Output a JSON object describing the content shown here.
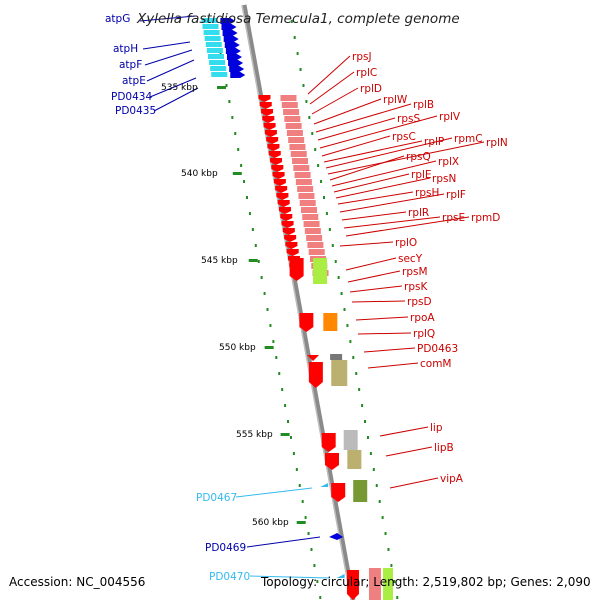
{
  "header": {
    "title": "Xylella fastidiosa Temecula1, complete genome"
  },
  "footer": {
    "accession": "Accession: NC_004556",
    "summary": "Topology: circular; Length: 2,519,802 bp; Genes: 2,090"
  },
  "colors": {
    "backbone": "#8a8a8a",
    "ribosomal_gene": "#ff0000",
    "ribosomal_block": "#f08080",
    "atp_gene": "#0000dd",
    "atp_block": "#33ddee",
    "label_red": "#cc0000",
    "label_blue": "#0000aa",
    "label_cyan": "#33bbee",
    "tick": "#228b22",
    "lime": "#aaee44",
    "orange": "#ff8800",
    "olive": "#bbb070",
    "green": "#779933",
    "gray": "#bbbbbb"
  },
  "scale_labels": [
    {
      "text": "535 kbp",
      "kb": 535
    },
    {
      "text": "540 kbp",
      "kb": 540
    },
    {
      "text": "545 kbp",
      "kb": 545
    },
    {
      "text": "550 kbp",
      "kb": 550
    },
    {
      "text": "555 kbp",
      "kb": 555
    },
    {
      "text": "560 kbp",
      "kb": 560
    }
  ],
  "left_genes": [
    {
      "name": "atpG",
      "color": "label_blue"
    },
    {
      "name": "atpH",
      "color": "label_blue"
    },
    {
      "name": "atpF",
      "color": "label_blue"
    },
    {
      "name": "atpE",
      "color": "label_blue"
    },
    {
      "name": "PD0434",
      "color": "label_blue"
    },
    {
      "name": "PD0435",
      "color": "label_blue"
    },
    {
      "name": "PD0467",
      "color": "label_cyan"
    },
    {
      "name": "PD0469",
      "color": "label_blue"
    },
    {
      "name": "PD0470",
      "color": "label_cyan"
    }
  ],
  "right_genes": [
    {
      "name": "rpsJ"
    },
    {
      "name": "rplC"
    },
    {
      "name": "rplD"
    },
    {
      "name": "rplW"
    },
    {
      "name": "rplB"
    },
    {
      "name": "rpsS"
    },
    {
      "name": "rplV"
    },
    {
      "name": "rpsC"
    },
    {
      "name": "rplP"
    },
    {
      "name": "rpmC"
    },
    {
      "name": "rplN"
    },
    {
      "name": "rpsQ"
    },
    {
      "name": "rplX"
    },
    {
      "name": "rplE"
    },
    {
      "name": "rpsN"
    },
    {
      "name": "rpsH"
    },
    {
      "name": "rplF"
    },
    {
      "name": "rplR"
    },
    {
      "name": "rpsE"
    },
    {
      "name": "rpmD"
    },
    {
      "name": "rplO"
    },
    {
      "name": "secY"
    },
    {
      "name": "rpsM"
    },
    {
      "name": "rpsK"
    },
    {
      "name": "rpsD"
    },
    {
      "name": "rpoA"
    },
    {
      "name": "rplQ"
    },
    {
      "name": "PD0463"
    },
    {
      "name": "comM"
    },
    {
      "name": "lip"
    },
    {
      "name": "lipB"
    },
    {
      "name": "vipA"
    }
  ]
}
